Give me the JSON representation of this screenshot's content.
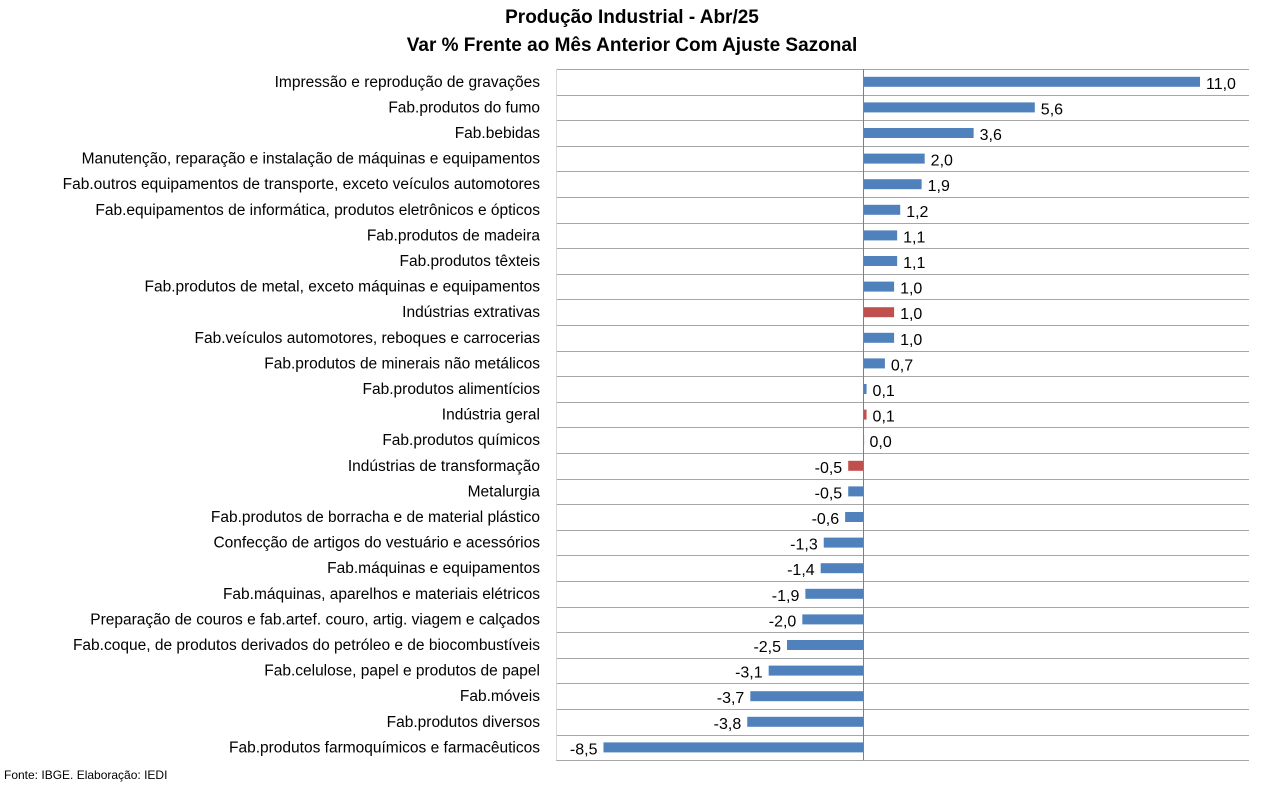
{
  "chart_data": {
    "type": "bar",
    "orientation": "horizontal",
    "title": "Produção Industrial - Abr/25",
    "subtitle": "Var % Frente ao Mês Anterior Com Ajuste Sazonal",
    "source": "Fonte: IBGE. Elaboração: IEDI",
    "xlim": [
      -8.5,
      11.0
    ],
    "grid": true,
    "colors": {
      "default": "#4F81BD",
      "highlight": "#C0504D"
    },
    "categories": [
      "Impressão e reprodução de gravações",
      "Fab.produtos do fumo",
      "Fab.bebidas",
      "Manutenção, reparação e instalação de máquinas e equipamentos",
      "Fab.outros equipamentos de transporte, exceto veículos automotores",
      "Fab.equipamentos de informática, produtos eletrônicos e ópticos",
      "Fab.produtos de madeira",
      "Fab.produtos têxteis",
      "Fab.produtos de metal, exceto máquinas e equipamentos",
      "Indústrias extrativas",
      "Fab.veículos automotores, reboques e carrocerias",
      "Fab.produtos de minerais não metálicos",
      "Fab.produtos alimentícios",
      "Indústria geral",
      "Fab.produtos químicos",
      "Indústrias de transformação",
      "Metalurgia",
      "Fab.produtos de borracha e de material plástico",
      "Confecção de artigos do vestuário e acessórios",
      "Fab.máquinas e equipamentos",
      "Fab.máquinas, aparelhos e materiais elétricos",
      "Preparação de couros e fab.artef. couro, artig. viagem e calçados",
      "Fab.coque, de produtos derivados do petróleo e de biocombustíveis",
      "Fab.celulose, papel e produtos de papel",
      "Fab.móveis",
      "Fab.produtos diversos",
      "Fab.produtos farmoquímicos e farmacêuticos"
    ],
    "values": [
      11.0,
      5.6,
      3.6,
      2.0,
      1.9,
      1.2,
      1.1,
      1.1,
      1.0,
      1.0,
      1.0,
      0.7,
      0.1,
      0.1,
      0.0,
      -0.5,
      -0.5,
      -0.6,
      -1.3,
      -1.4,
      -1.9,
      -2.0,
      -2.5,
      -3.1,
      -3.7,
      -3.8,
      -8.5
    ],
    "value_labels": [
      "11,0",
      "5,6",
      "3,6",
      "2,0",
      "1,9",
      "1,2",
      "1,1",
      "1,1",
      "1,0",
      "1,0",
      "1,0",
      "0,7",
      "0,1",
      "0,1",
      "0,0",
      "-0,5",
      "-0,5",
      "-0,6",
      "-1,3",
      "-1,4",
      "-1,9",
      "-2,0",
      "-2,5",
      "-3,1",
      "-3,7",
      "-3,8",
      "-8,5"
    ],
    "highlighted": [
      "Indústrias extrativas",
      "Indústria geral",
      "Indústrias de transformação"
    ]
  }
}
